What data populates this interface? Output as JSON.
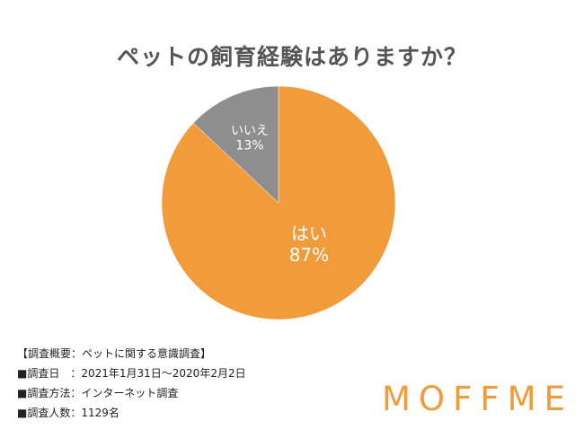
{
  "chart_data": {
    "type": "pie",
    "title": "ペットの飼育経験はありますか？",
    "slices": [
      {
        "label": "はい",
        "value": 87,
        "value_label": "87%",
        "color": "#F29B3A"
      },
      {
        "label": "いいえ",
        "value": 13,
        "value_label": "13%",
        "color": "#8E8E8E"
      }
    ],
    "legend": "none"
  },
  "notes": [
    "【調査概要：ペットに関する意識調査】",
    "■調査日　：2021年1月31日〜2020年2月2日",
    "■調査方法：インターネット調査",
    "■調査人数：1129名"
  ],
  "brand": {
    "logo_text": "MOFFME",
    "color": "#F29B3A"
  }
}
